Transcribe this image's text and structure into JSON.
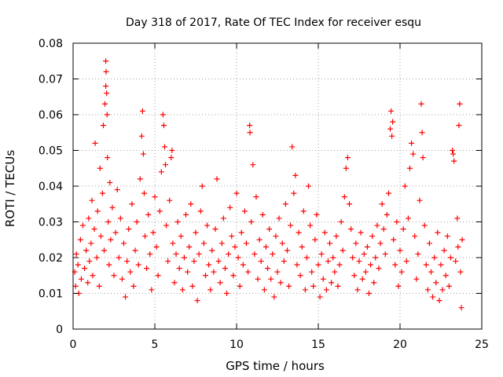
{
  "chart_data": {
    "type": "scatter",
    "title": "Day 318 of 2017, Rate Of TEC Index for receiver esqu",
    "xlabel": "GPS time / hours",
    "ylabel": "ROTI / TECUs",
    "xlim": [
      0,
      25
    ],
    "ylim": [
      0,
      0.08
    ],
    "x_ticks": [
      "0",
      "5",
      "10",
      "15",
      "20",
      "25"
    ],
    "y_ticks": [
      "0",
      "0.01",
      "0.02",
      "0.03",
      "0.04",
      "0.05",
      "0.06",
      "0.07",
      "0.08"
    ],
    "grid": true,
    "marker": "plus",
    "series_color": "#ff0000",
    "series": [
      {
        "points": [
          [
            0.1,
            0.016
          ],
          [
            0.15,
            0.012
          ],
          [
            0.2,
            0.021
          ],
          [
            0.3,
            0.018
          ],
          [
            0.35,
            0.01
          ],
          [
            0.45,
            0.025
          ],
          [
            0.5,
            0.014
          ],
          [
            0.6,
            0.029
          ],
          [
            0.7,
            0.017
          ],
          [
            0.8,
            0.022
          ],
          [
            0.9,
            0.013
          ],
          [
            0.95,
            0.031
          ],
          [
            1.0,
            0.019
          ],
          [
            1.1,
            0.024
          ],
          [
            1.15,
            0.036
          ],
          [
            1.2,
            0.015
          ],
          [
            1.3,
            0.028
          ],
          [
            1.35,
            0.052
          ],
          [
            1.45,
            0.02
          ],
          [
            1.5,
            0.033
          ],
          [
            1.6,
            0.012
          ],
          [
            1.65,
            0.045
          ],
          [
            1.7,
            0.026
          ],
          [
            1.8,
            0.038
          ],
          [
            1.85,
            0.057
          ],
          [
            1.9,
            0.022
          ],
          [
            1.95,
            0.063
          ],
          [
            2.0,
            0.075
          ],
          [
            2.0,
            0.068
          ],
          [
            2.02,
            0.072
          ],
          [
            2.05,
            0.066
          ],
          [
            2.08,
            0.06
          ],
          [
            2.1,
            0.048
          ],
          [
            2.15,
            0.03
          ],
          [
            2.2,
            0.018
          ],
          [
            2.25,
            0.041
          ],
          [
            2.3,
            0.025
          ],
          [
            2.4,
            0.034
          ],
          [
            2.5,
            0.015
          ],
          [
            2.6,
            0.027
          ],
          [
            2.7,
            0.039
          ],
          [
            2.8,
            0.02
          ],
          [
            2.9,
            0.031
          ],
          [
            3.0,
            0.014
          ],
          [
            3.1,
            0.024
          ],
          [
            3.2,
            0.009
          ],
          [
            3.3,
            0.019
          ],
          [
            3.4,
            0.028
          ],
          [
            3.5,
            0.016
          ],
          [
            3.6,
            0.035
          ],
          [
            3.7,
            0.012
          ],
          [
            3.8,
            0.022
          ],
          [
            3.9,
            0.03
          ],
          [
            4.0,
            0.018
          ],
          [
            4.1,
            0.042
          ],
          [
            4.2,
            0.054
          ],
          [
            4.25,
            0.061
          ],
          [
            4.3,
            0.049
          ],
          [
            4.35,
            0.038
          ],
          [
            4.4,
            0.026
          ],
          [
            4.5,
            0.017
          ],
          [
            4.6,
            0.032
          ],
          [
            4.7,
            0.021
          ],
          [
            4.8,
            0.011
          ],
          [
            4.9,
            0.027
          ],
          [
            5.0,
            0.037
          ],
          [
            5.1,
            0.023
          ],
          [
            5.2,
            0.015
          ],
          [
            5.3,
            0.033
          ],
          [
            5.4,
            0.044
          ],
          [
            5.5,
            0.06
          ],
          [
            5.55,
            0.057
          ],
          [
            5.6,
            0.051
          ],
          [
            5.65,
            0.046
          ],
          [
            5.7,
            0.029
          ],
          [
            5.8,
            0.019
          ],
          [
            5.9,
            0.036
          ],
          [
            6.0,
            0.048
          ],
          [
            6.05,
            0.05
          ],
          [
            6.1,
            0.024
          ],
          [
            6.2,
            0.013
          ],
          [
            6.3,
            0.021
          ],
          [
            6.4,
            0.03
          ],
          [
            6.5,
            0.017
          ],
          [
            6.6,
            0.026
          ],
          [
            6.7,
            0.011
          ],
          [
            6.8,
            0.02
          ],
          [
            6.9,
            0.032
          ],
          [
            7.0,
            0.016
          ],
          [
            7.1,
            0.023
          ],
          [
            7.2,
            0.035
          ],
          [
            7.3,
            0.012
          ],
          [
            7.4,
            0.019
          ],
          [
            7.5,
            0.027
          ],
          [
            7.6,
            0.008
          ],
          [
            7.7,
            0.021
          ],
          [
            7.8,
            0.033
          ],
          [
            7.9,
            0.04
          ],
          [
            8.0,
            0.024
          ],
          [
            8.1,
            0.015
          ],
          [
            8.2,
            0.029
          ],
          [
            8.3,
            0.018
          ],
          [
            8.4,
            0.011
          ],
          [
            8.5,
            0.022
          ],
          [
            8.6,
            0.016
          ],
          [
            8.7,
            0.028
          ],
          [
            8.8,
            0.042
          ],
          [
            8.9,
            0.019
          ],
          [
            9.0,
            0.013
          ],
          [
            9.1,
            0.024
          ],
          [
            9.2,
            0.031
          ],
          [
            9.3,
            0.017
          ],
          [
            9.4,
            0.01
          ],
          [
            9.5,
            0.021
          ],
          [
            9.6,
            0.034
          ],
          [
            9.7,
            0.026
          ],
          [
            9.8,
            0.015
          ],
          [
            9.9,
            0.023
          ],
          [
            10.0,
            0.038
          ],
          [
            10.1,
            0.02
          ],
          [
            10.2,
            0.012
          ],
          [
            10.3,
            0.027
          ],
          [
            10.4,
            0.018
          ],
          [
            10.5,
            0.033
          ],
          [
            10.6,
            0.024
          ],
          [
            10.7,
            0.016
          ],
          [
            10.8,
            0.057
          ],
          [
            10.82,
            0.055
          ],
          [
            10.9,
            0.03
          ],
          [
            11.0,
            0.046
          ],
          [
            11.1,
            0.021
          ],
          [
            11.2,
            0.037
          ],
          [
            11.3,
            0.014
          ],
          [
            11.4,
            0.025
          ],
          [
            11.5,
            0.019
          ],
          [
            11.6,
            0.032
          ],
          [
            11.7,
            0.011
          ],
          [
            11.8,
            0.023
          ],
          [
            11.9,
            0.017
          ],
          [
            12.0,
            0.028
          ],
          [
            12.1,
            0.014
          ],
          [
            12.2,
            0.021
          ],
          [
            12.3,
            0.009
          ],
          [
            12.4,
            0.026
          ],
          [
            12.5,
            0.016
          ],
          [
            12.6,
            0.031
          ],
          [
            12.7,
            0.013
          ],
          [
            12.8,
            0.024
          ],
          [
            12.9,
            0.019
          ],
          [
            13.0,
            0.035
          ],
          [
            13.1,
            0.022
          ],
          [
            13.2,
            0.012
          ],
          [
            13.3,
            0.029
          ],
          [
            13.4,
            0.051
          ],
          [
            13.5,
            0.038
          ],
          [
            13.6,
            0.043
          ],
          [
            13.7,
            0.018
          ],
          [
            13.8,
            0.027
          ],
          [
            13.9,
            0.015
          ],
          [
            14.0,
            0.023
          ],
          [
            14.1,
            0.033
          ],
          [
            14.2,
            0.011
          ],
          [
            14.3,
            0.02
          ],
          [
            14.4,
            0.04
          ],
          [
            14.5,
            0.029
          ],
          [
            14.6,
            0.016
          ],
          [
            14.7,
            0.012
          ],
          [
            14.8,
            0.025
          ],
          [
            14.9,
            0.032
          ],
          [
            15.0,
            0.018
          ],
          [
            15.1,
            0.009
          ],
          [
            15.2,
            0.021
          ],
          [
            15.3,
            0.014
          ],
          [
            15.4,
            0.027
          ],
          [
            15.5,
            0.011
          ],
          [
            15.6,
            0.019
          ],
          [
            15.7,
            0.024
          ],
          [
            15.8,
            0.013
          ],
          [
            15.9,
            0.02
          ],
          [
            16.0,
            0.016
          ],
          [
            16.1,
            0.026
          ],
          [
            16.2,
            0.012
          ],
          [
            16.3,
            0.018
          ],
          [
            16.4,
            0.03
          ],
          [
            16.5,
            0.022
          ],
          [
            16.6,
            0.037
          ],
          [
            16.7,
            0.045
          ],
          [
            16.8,
            0.048
          ],
          [
            16.9,
            0.035
          ],
          [
            17.0,
            0.028
          ],
          [
            17.1,
            0.02
          ],
          [
            17.2,
            0.015
          ],
          [
            17.3,
            0.024
          ],
          [
            17.4,
            0.011
          ],
          [
            17.5,
            0.019
          ],
          [
            17.6,
            0.027
          ],
          [
            17.7,
            0.014
          ],
          [
            17.8,
            0.021
          ],
          [
            17.9,
            0.016
          ],
          [
            18.0,
            0.023
          ],
          [
            18.1,
            0.01
          ],
          [
            18.2,
            0.018
          ],
          [
            18.3,
            0.026
          ],
          [
            18.4,
            0.013
          ],
          [
            18.5,
            0.02
          ],
          [
            18.6,
            0.029
          ],
          [
            18.7,
            0.017
          ],
          [
            18.8,
            0.024
          ],
          [
            18.9,
            0.035
          ],
          [
            19.0,
            0.028
          ],
          [
            19.1,
            0.021
          ],
          [
            19.2,
            0.032
          ],
          [
            19.3,
            0.038
          ],
          [
            19.4,
            0.056
          ],
          [
            19.45,
            0.061
          ],
          [
            19.5,
            0.054
          ],
          [
            19.55,
            0.058
          ],
          [
            19.6,
            0.025
          ],
          [
            19.7,
            0.018
          ],
          [
            19.8,
            0.03
          ],
          [
            19.9,
            0.012
          ],
          [
            20.0,
            0.022
          ],
          [
            20.1,
            0.016
          ],
          [
            20.2,
            0.028
          ],
          [
            20.3,
            0.04
          ],
          [
            20.4,
            0.019
          ],
          [
            20.5,
            0.031
          ],
          [
            20.6,
            0.045
          ],
          [
            20.7,
            0.052
          ],
          [
            20.8,
            0.049
          ],
          [
            20.9,
            0.026
          ],
          [
            21.0,
            0.014
          ],
          [
            21.1,
            0.021
          ],
          [
            21.2,
            0.036
          ],
          [
            21.3,
            0.063
          ],
          [
            21.35,
            0.055
          ],
          [
            21.4,
            0.048
          ],
          [
            21.5,
            0.029
          ],
          [
            21.6,
            0.018
          ],
          [
            21.7,
            0.011
          ],
          [
            21.8,
            0.024
          ],
          [
            21.9,
            0.016
          ],
          [
            22.0,
            0.009
          ],
          [
            22.1,
            0.02
          ],
          [
            22.2,
            0.013
          ],
          [
            22.3,
            0.027
          ],
          [
            22.4,
            0.008
          ],
          [
            22.5,
            0.018
          ],
          [
            22.6,
            0.011
          ],
          [
            22.7,
            0.022
          ],
          [
            22.8,
            0.015
          ],
          [
            22.9,
            0.026
          ],
          [
            23.0,
            0.012
          ],
          [
            23.1,
            0.02
          ],
          [
            23.2,
            0.05
          ],
          [
            23.25,
            0.049
          ],
          [
            23.3,
            0.047
          ],
          [
            23.4,
            0.019
          ],
          [
            23.5,
            0.031
          ],
          [
            23.55,
            0.023
          ],
          [
            23.6,
            0.057
          ],
          [
            23.65,
            0.063
          ],
          [
            23.7,
            0.016
          ],
          [
            23.75,
            0.006
          ],
          [
            23.8,
            0.025
          ]
        ]
      }
    ]
  }
}
